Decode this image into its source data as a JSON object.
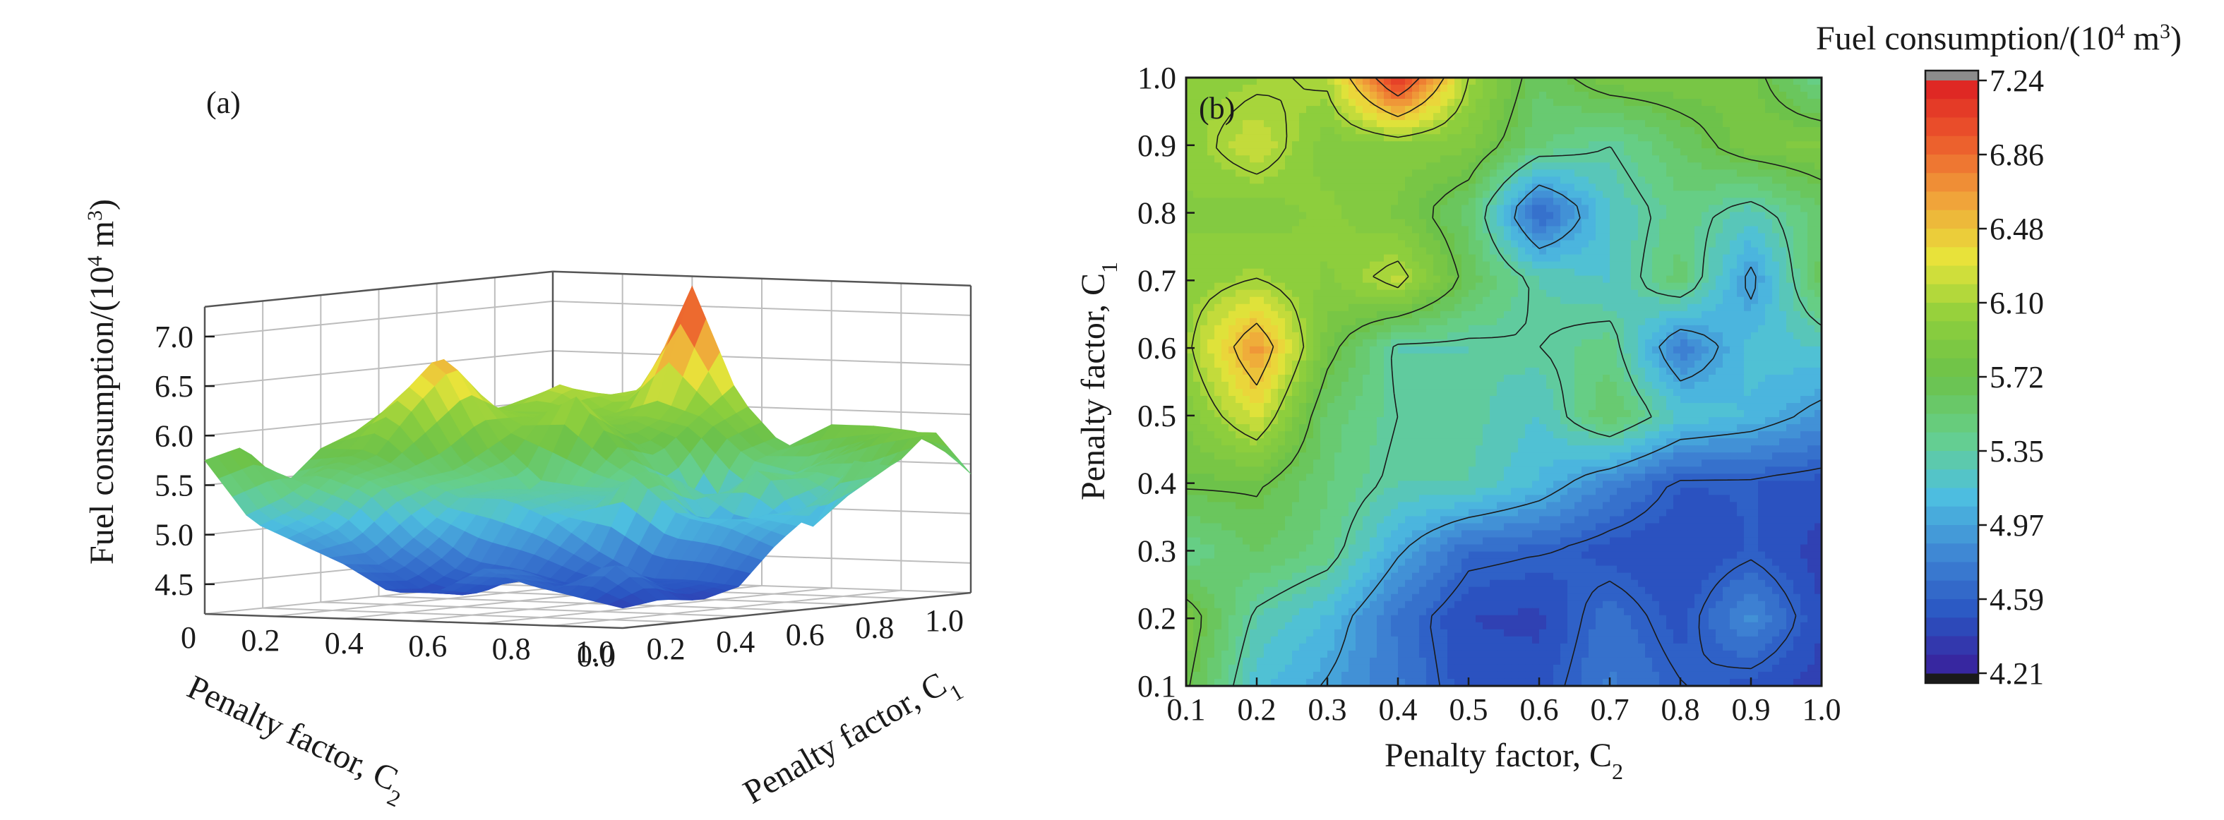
{
  "chart_data": [
    {
      "panel": "(a)",
      "type": "surface3d",
      "xlabel": "Penalty factor, C",
      "xlabel_sub": "2",
      "ylabel": "Penalty factor, C",
      "ylabel_sub": "1",
      "zlabel": "Fuel consumption/(10",
      "zlabel_sup": "4",
      "zlabel_tail": " m",
      "zlabel_sup2": "3",
      "zlabel_close": ")",
      "x_ticks": [
        "0",
        "0.2",
        "0.4",
        "0.6",
        "0.8",
        "1.0"
      ],
      "y_ticks": [
        "0.0",
        "0.2",
        "0.4",
        "0.6",
        "0.8",
        "1.0"
      ],
      "z_ticks": [
        "4.5",
        "5.0",
        "5.5",
        "6.0",
        "6.5",
        "7.0"
      ],
      "zlim": [
        4.21,
        7.24
      ],
      "x": [
        0.1,
        0.2,
        0.3,
        0.4,
        0.5,
        0.6,
        0.7,
        0.8,
        0.9,
        1.0
      ],
      "y": [
        0.1,
        0.2,
        0.3,
        0.4,
        0.5,
        0.6,
        0.7,
        0.8,
        0.9,
        1.0
      ],
      "z_rows_by_C1": [
        [
          5.75,
          5.15,
          4.95,
          4.75,
          4.48,
          4.5,
          4.75,
          4.6,
          4.5,
          4.4
        ],
        [
          5.85,
          5.3,
          5.1,
          4.7,
          4.45,
          4.42,
          4.7,
          4.5,
          4.85,
          4.45
        ],
        [
          5.4,
          5.6,
          5.45,
          5.0,
          4.65,
          4.6,
          4.5,
          4.45,
          4.55,
          4.4
        ],
        [
          5.75,
          5.75,
          5.5,
          5.3,
          5.3,
          5.1,
          4.8,
          4.55,
          4.55,
          4.5
        ],
        [
          5.9,
          6.3,
          5.55,
          5.35,
          5.35,
          5.2,
          5.6,
          5.2,
          5.1,
          4.9
        ],
        [
          6.05,
          6.7,
          5.8,
          5.3,
          5.3,
          5.35,
          5.45,
          4.75,
          5.15,
          5.2
        ],
        [
          6.0,
          6.1,
          5.95,
          6.2,
          5.65,
          5.3,
          5.2,
          5.55,
          4.9,
          5.65
        ],
        [
          5.95,
          5.9,
          6.0,
          5.85,
          5.55,
          4.6,
          5.2,
          5.45,
          5.25,
          5.55
        ],
        [
          6.0,
          6.25,
          5.9,
          5.95,
          5.9,
          5.5,
          5.35,
          5.6,
          5.85,
          5.9
        ],
        [
          6.0,
          6.05,
          6.15,
          7.2,
          6.1,
          5.6,
          5.85,
          5.85,
          5.8,
          5.4
        ]
      ]
    },
    {
      "panel": "(b)",
      "type": "heatmap",
      "xlabel": "Penalty factor, C",
      "xlabel_sub": "2",
      "ylabel": "Penalty factor, C",
      "ylabel_sub": "1",
      "x_ticks": [
        "0.1",
        "0.2",
        "0.3",
        "0.4",
        "0.5",
        "0.6",
        "0.7",
        "0.8",
        "0.9",
        "1.0"
      ],
      "y_ticks": [
        "0.1",
        "0.2",
        "0.3",
        "0.4",
        "0.5",
        "0.6",
        "0.7",
        "0.8",
        "0.9",
        "1.0"
      ],
      "xlim": [
        0.1,
        1.0
      ],
      "ylim": [
        0.1,
        1.0
      ],
      "colorbar": {
        "title": "Fuel consumption/(10",
        "title_sup": "4",
        "title_tail": " m",
        "title_sup2": "3",
        "title_close": ")",
        "ticks": [
          "7.24",
          "6.86",
          "6.48",
          "6.10",
          "5.72",
          "5.35",
          "4.97",
          "4.59",
          "4.21"
        ],
        "range": [
          4.21,
          7.24
        ],
        "colors": [
          "#3a1f9a",
          "#2a55c2",
          "#3f86d4",
          "#4dbfe0",
          "#66cf8a",
          "#6cc24a",
          "#8fcf3c",
          "#e8e43a",
          "#f0a23a",
          "#ec5a2c",
          "#dd1f22"
        ],
        "over_color": "#8c8c8c",
        "under_color": "#1a1a1a"
      }
    }
  ]
}
